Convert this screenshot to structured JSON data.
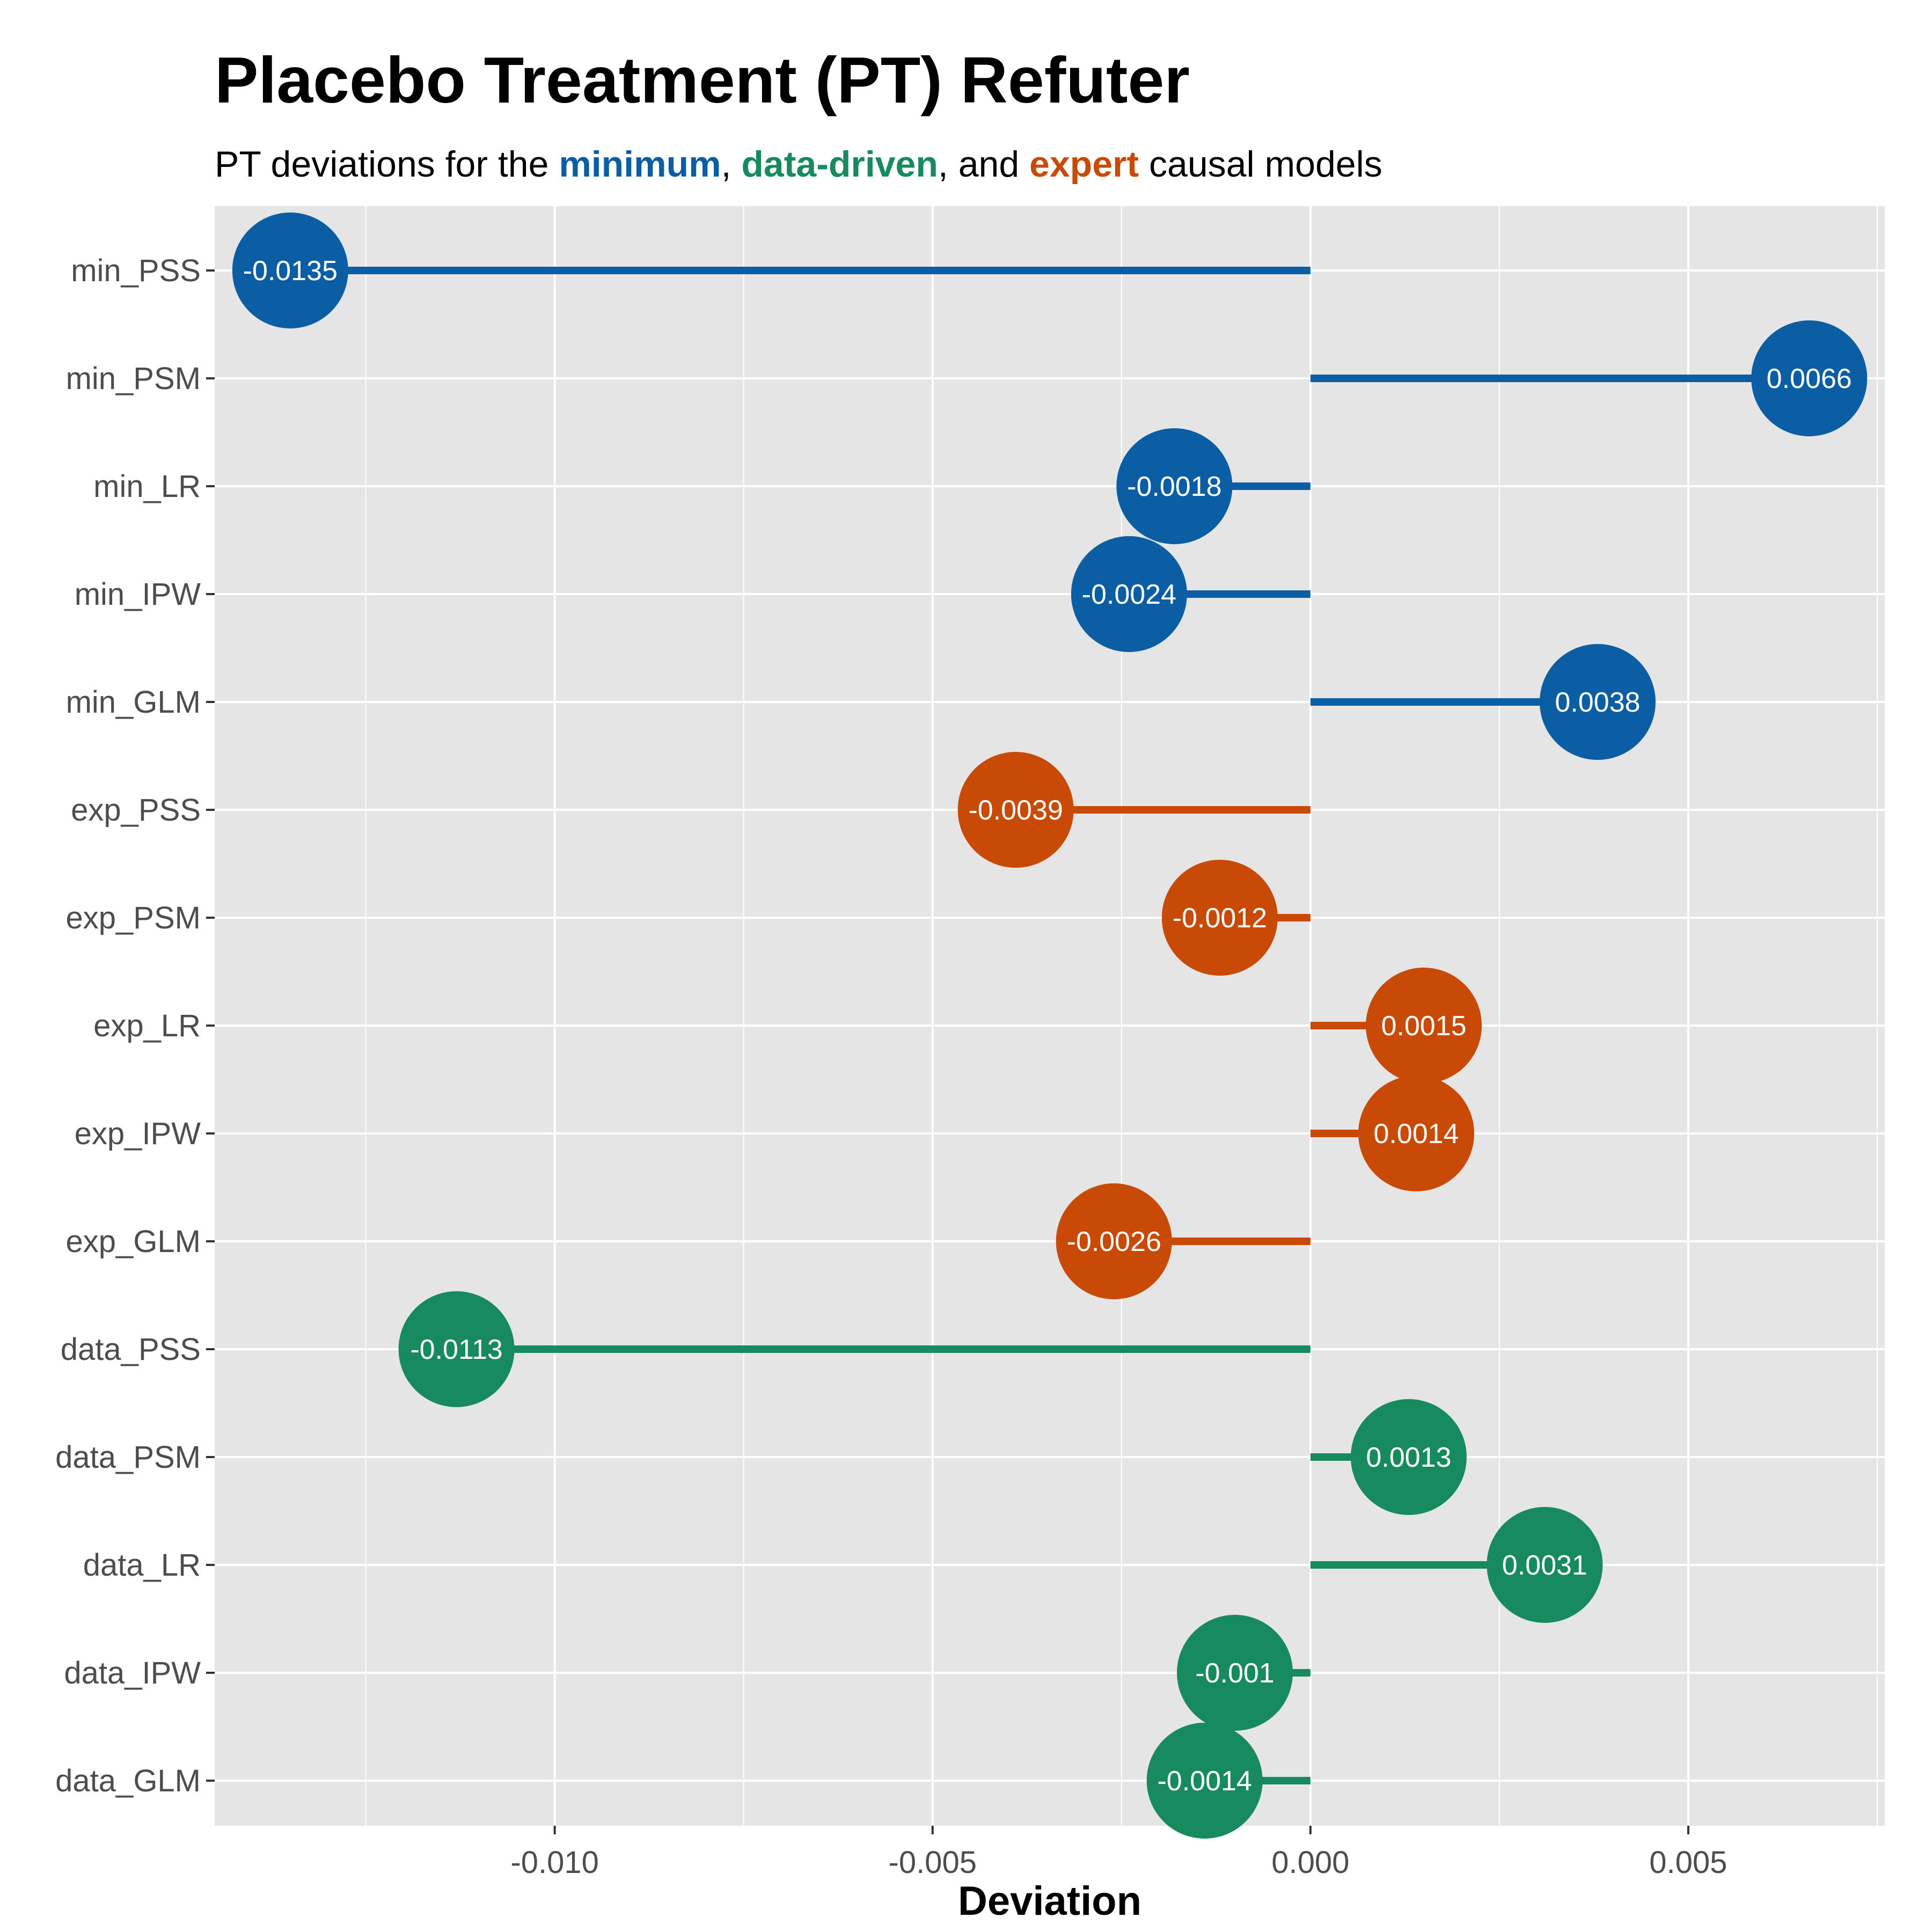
{
  "title": "Placebo Treatment (PT) Refuter",
  "subtitle": {
    "prefix": "PT deviations for the ",
    "minimum": "minimum",
    "sep1": ", ",
    "data_driven": "data-driven",
    "sep2": ", and ",
    "expert": "expert",
    "suffix": " causal models"
  },
  "colors": {
    "minimum": "#0b5ea4",
    "data_driven": "#178a5f",
    "expert": "#c84a06",
    "panel_background": "#e5e5e5",
    "grid": "#ffffff"
  },
  "chart_data": {
    "type": "lollipop",
    "orientation": "horizontal",
    "xlabel": "Deviation",
    "ylabel": "",
    "xlim": [
      -0.0145,
      0.0076
    ],
    "x_ticks": [
      -0.01,
      -0.005,
      0.0,
      0.005
    ],
    "x_tick_labels": [
      "-0.010",
      "-0.005",
      "0.000",
      "0.005"
    ],
    "grid": true,
    "legend": "none",
    "points": [
      {
        "label": "min_PSS",
        "value": -0.0135,
        "value_label": "-0.0135",
        "group": "minimum"
      },
      {
        "label": "min_PSM",
        "value": 0.0066,
        "value_label": "0.0066",
        "group": "minimum"
      },
      {
        "label": "min_LR",
        "value": -0.0018,
        "value_label": "-0.0018",
        "group": "minimum"
      },
      {
        "label": "min_IPW",
        "value": -0.0024,
        "value_label": "-0.0024",
        "group": "minimum"
      },
      {
        "label": "min_GLM",
        "value": 0.0038,
        "value_label": "0.0038",
        "group": "minimum"
      },
      {
        "label": "exp_PSS",
        "value": -0.0039,
        "value_label": "-0.0039",
        "group": "expert"
      },
      {
        "label": "exp_PSM",
        "value": -0.0012,
        "value_label": "-0.0012",
        "group": "expert"
      },
      {
        "label": "exp_LR",
        "value": 0.0015,
        "value_label": "0.0015",
        "group": "expert"
      },
      {
        "label": "exp_IPW",
        "value": 0.0014,
        "value_label": "0.0014",
        "group": "expert"
      },
      {
        "label": "exp_GLM",
        "value": -0.0026,
        "value_label": "-0.0026",
        "group": "expert"
      },
      {
        "label": "data_PSS",
        "value": -0.0113,
        "value_label": "-0.0113",
        "group": "data_driven"
      },
      {
        "label": "data_PSM",
        "value": 0.0013,
        "value_label": "0.0013",
        "group": "data_driven"
      },
      {
        "label": "data_LR",
        "value": 0.0031,
        "value_label": "0.0031",
        "group": "data_driven"
      },
      {
        "label": "data_IPW",
        "value": -0.001,
        "value_label": "-0.001",
        "group": "data_driven"
      },
      {
        "label": "data_GLM",
        "value": -0.0014,
        "value_label": "-0.0014",
        "group": "data_driven"
      }
    ]
  }
}
